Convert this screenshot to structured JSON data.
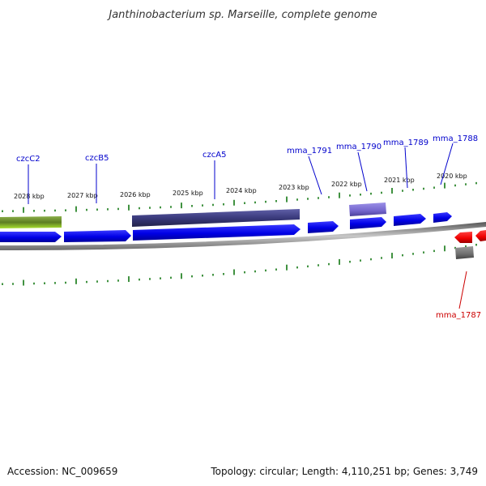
{
  "title": "Janthinobacterium sp. Marseille, complete genome",
  "footer": {
    "accession": "Accession: NC_009659",
    "topology": "Topology: circular; Length: 4,110,251 bp; Genes: 3,749"
  },
  "colors": {
    "gene_label_fwd": "#0000cc",
    "gene_label_rev": "#cc0000",
    "ticks": "#117711",
    "forward_gene": "#0000ee",
    "reverse_gene": "#ee0000",
    "backbone": "#888888"
  },
  "kbp_labels": [
    "2028 kbp",
    "2027 kbp",
    "2026 kbp",
    "2025 kbp",
    "2024 kbp",
    "2023 kbp",
    "2022 kbp",
    "2021 kbp",
    "2020 kbp"
  ],
  "gene_labels": [
    "czcC2",
    "czcB5",
    "czcA5",
    "mma_1791",
    "mma_1790",
    "mma_1789",
    "mma_1788",
    "mma_1787"
  ]
}
